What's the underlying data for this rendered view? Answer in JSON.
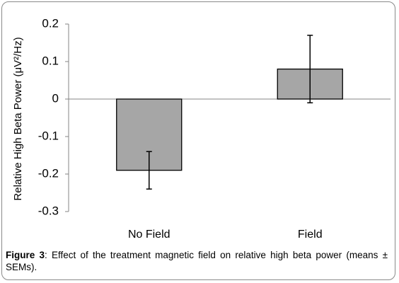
{
  "chart_data": {
    "type": "bar",
    "categories": [
      "No Field",
      "Field"
    ],
    "values": [
      -0.19,
      0.08
    ],
    "error_low": [
      -0.24,
      -0.01
    ],
    "error_high": [
      -0.14,
      0.17
    ],
    "ylabel": "Relative High Beta Power (μV²/Hz)",
    "xlabel": "",
    "ylim": [
      -0.3,
      0.2
    ],
    "yticks": [
      0.2,
      0.1,
      0,
      -0.1,
      -0.2,
      -0.3
    ],
    "ytick_labels": [
      "0.2",
      "0.1",
      "0",
      "-0.1",
      "-0.2",
      "-0.3"
    ],
    "bar_color": "#a6a6a6",
    "grid": false
  },
  "caption": {
    "label": "Figure 3",
    "separator": ":",
    "text": " Effect of the treatment magnetic field on relative high beta power (means ± SEMs)."
  }
}
